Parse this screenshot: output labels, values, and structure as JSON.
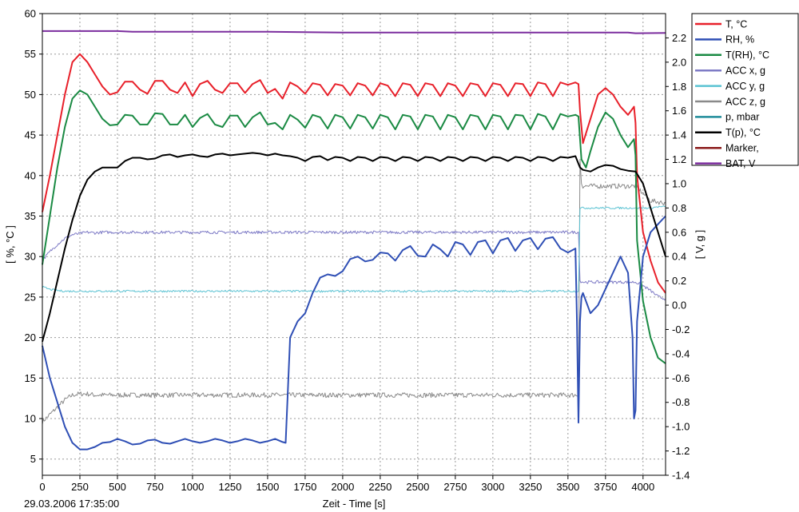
{
  "chart_data": {
    "type": "line",
    "title": "",
    "xlabel": "Zeit - Time [s]",
    "ylabel_left": "[ %, °C ]",
    "ylabel_right": "[ V, g ]",
    "start_timestamp": "29.03.2006 17:35:00",
    "xlim": [
      0,
      4150
    ],
    "ylim_left": [
      3,
      60
    ],
    "ylim_right": [
      -1.4,
      2.4
    ],
    "x_ticks": [
      0,
      250,
      500,
      750,
      1000,
      1250,
      1500,
      1750,
      2000,
      2250,
      2500,
      2750,
      3000,
      3250,
      3500,
      3750,
      4000
    ],
    "y_ticks_left": [
      5,
      10,
      15,
      20,
      25,
      30,
      35,
      40,
      45,
      50,
      55,
      60
    ],
    "y_ticks_right": [
      -1.4,
      -1.2,
      -1.0,
      -0.8,
      -0.6,
      -0.4,
      -0.2,
      0.0,
      0.2,
      0.4,
      0.6,
      0.8,
      1.0,
      1.2,
      1.4,
      1.6,
      1.8,
      2.0,
      2.2
    ],
    "y_tick_labels_right": [
      "-1.4",
      "-1.2",
      "-1.0",
      "-0.8",
      "-0.6",
      "-0.4",
      "-0.2",
      "0.0",
      "0.2",
      "0.4",
      "0.6",
      "0.8",
      "1.0",
      "1.2",
      "1.4",
      "1.6",
      "1.8",
      "2.0",
      "2.2"
    ],
    "grid": true,
    "legend_position": "right",
    "series": [
      {
        "name": "T, °C",
        "axis": "left",
        "color": "#e8202a",
        "x": [
          0,
          50,
          100,
          150,
          200,
          250,
          300,
          350,
          400,
          450,
          500,
          550,
          600,
          650,
          700,
          750,
          800,
          850,
          900,
          950,
          1000,
          1050,
          1100,
          1150,
          1200,
          1250,
          1300,
          1350,
          1400,
          1450,
          1500,
          1550,
          1600,
          1650,
          1700,
          1750,
          1800,
          1850,
          1900,
          1950,
          2000,
          2050,
          2100,
          2150,
          2200,
          2250,
          2300,
          2350,
          2400,
          2450,
          2500,
          2550,
          2600,
          2650,
          2700,
          2750,
          2800,
          2850,
          2900,
          2950,
          3000,
          3050,
          3100,
          3150,
          3200,
          3250,
          3300,
          3350,
          3400,
          3450,
          3500,
          3550,
          3570,
          3580,
          3600,
          3650,
          3700,
          3750,
          3800,
          3850,
          3900,
          3940,
          3950,
          3960,
          4000,
          4050,
          4100,
          4150
        ],
        "y": [
          35.5,
          40,
          45,
          50,
          54,
          55,
          54,
          52.5,
          51,
          50,
          50.3,
          51.6,
          51.6,
          50.6,
          50.1,
          51.7,
          51.7,
          50.6,
          50.2,
          51.5,
          49.8,
          51.3,
          51.7,
          50.6,
          50.2,
          51.4,
          51.4,
          50.2,
          51.3,
          51.8,
          50.2,
          50.7,
          49.5,
          51.5,
          51.0,
          50.1,
          51.4,
          51.2,
          49.9,
          51.3,
          51.1,
          49.9,
          51.4,
          51.1,
          49.9,
          51.4,
          51.1,
          49.8,
          51.4,
          51.2,
          49.8,
          51.4,
          51.2,
          49.8,
          51.4,
          51.1,
          49.8,
          51.4,
          51.2,
          49.8,
          51.4,
          51.2,
          49.8,
          51.4,
          51.3,
          49.8,
          51.5,
          51.3,
          49.8,
          51.5,
          51.2,
          51.5,
          51.3,
          48,
          44,
          47,
          50,
          50.8,
          50,
          48.5,
          47.5,
          48.5,
          46.5,
          40,
          33,
          29.5,
          26.8,
          25.5
        ]
      },
      {
        "name": "RH, %",
        "axis": "left",
        "color": "#2f4fb5",
        "x": [
          0,
          50,
          100,
          150,
          200,
          250,
          300,
          350,
          400,
          450,
          500,
          550,
          600,
          650,
          700,
          750,
          800,
          850,
          900,
          950,
          1000,
          1050,
          1100,
          1150,
          1200,
          1250,
          1300,
          1350,
          1400,
          1450,
          1500,
          1550,
          1600,
          1620,
          1650,
          1700,
          1750,
          1800,
          1850,
          1900,
          1950,
          2000,
          2050,
          2100,
          2150,
          2200,
          2250,
          2300,
          2350,
          2400,
          2450,
          2500,
          2550,
          2600,
          2650,
          2700,
          2750,
          2800,
          2850,
          2900,
          2950,
          3000,
          3050,
          3100,
          3150,
          3200,
          3250,
          3300,
          3350,
          3400,
          3450,
          3500,
          3550,
          3560,
          3570,
          3580,
          3590,
          3600,
          3650,
          3700,
          3750,
          3800,
          3850,
          3900,
          3930,
          3940,
          3950,
          3960,
          4000,
          4050,
          4100,
          4150
        ],
        "y": [
          19,
          15,
          12,
          9,
          7,
          6.2,
          6.2,
          6.5,
          7,
          7.1,
          7.5,
          7.2,
          6.8,
          6.9,
          7.3,
          7.4,
          7.0,
          6.9,
          7.2,
          7.5,
          7.2,
          7.0,
          7.2,
          7.5,
          7.3,
          7.0,
          7.2,
          7.5,
          7.3,
          7.0,
          7.2,
          7.5,
          7.1,
          7.0,
          20,
          22,
          23,
          25.5,
          27.4,
          27.8,
          27.6,
          28.2,
          29.7,
          30,
          29.4,
          29.6,
          30.5,
          30.4,
          29.5,
          30.8,
          31.3,
          30.1,
          30,
          31.5,
          30.9,
          30,
          31.8,
          31.5,
          30.2,
          31.8,
          32,
          30.4,
          32,
          32.3,
          30.7,
          32,
          32.3,
          30.9,
          32.2,
          32.4,
          31,
          30.5,
          31,
          22,
          9.5,
          22,
          25,
          25.5,
          23,
          24,
          26,
          28,
          30,
          28,
          20,
          10,
          11,
          22,
          30,
          33,
          34,
          35
        ]
      },
      {
        "name": "T(RH), °C",
        "axis": "left",
        "color": "#1a8a43",
        "x": [
          0,
          50,
          100,
          150,
          200,
          250,
          300,
          350,
          400,
          450,
          500,
          550,
          600,
          650,
          700,
          750,
          800,
          850,
          900,
          950,
          1000,
          1050,
          1100,
          1150,
          1200,
          1250,
          1300,
          1350,
          1400,
          1450,
          1500,
          1550,
          1600,
          1650,
          1700,
          1750,
          1800,
          1850,
          1900,
          1950,
          2000,
          2050,
          2100,
          2150,
          2200,
          2250,
          2300,
          2350,
          2400,
          2450,
          2500,
          2550,
          2600,
          2650,
          2700,
          2750,
          2800,
          2850,
          2900,
          2950,
          3000,
          3050,
          3100,
          3150,
          3200,
          3250,
          3300,
          3350,
          3400,
          3450,
          3500,
          3550,
          3570,
          3590,
          3620,
          3650,
          3700,
          3750,
          3800,
          3850,
          3900,
          3940,
          3950,
          3960,
          4000,
          4050,
          4100,
          4150
        ],
        "y": [
          29,
          35,
          41,
          46,
          49.5,
          50.5,
          50,
          48.5,
          47,
          46.2,
          46.3,
          47.5,
          47.4,
          46.3,
          46.3,
          47.7,
          47.6,
          46.3,
          46.3,
          47.5,
          46,
          47.1,
          47.6,
          46.3,
          46.0,
          47.4,
          47.4,
          46.0,
          47.2,
          47.8,
          46.3,
          46.5,
          45.7,
          47.5,
          46.9,
          45.9,
          47.5,
          47.2,
          45.8,
          47.5,
          47.2,
          45.8,
          47.5,
          47.2,
          45.8,
          47.5,
          47.2,
          45.7,
          47.5,
          47.3,
          45.7,
          47.5,
          47.3,
          45.7,
          47.5,
          47.2,
          45.7,
          47.5,
          47.3,
          45.7,
          47.5,
          47.3,
          45.7,
          47.5,
          47.4,
          45.7,
          47.6,
          47.3,
          45.7,
          47.6,
          47.3,
          47.5,
          47.3,
          42,
          41,
          43,
          46,
          47.8,
          47,
          45,
          43.5,
          44.5,
          42.5,
          32,
          24.5,
          20,
          17.5,
          16.8
        ]
      },
      {
        "name": "ACC x, g",
        "axis": "right",
        "color": "#7e7bc6",
        "noise": 0.012,
        "x": [
          0,
          50,
          100,
          150,
          200,
          250,
          300,
          350,
          400,
          450,
          500,
          600,
          700,
          800,
          900,
          1000,
          1100,
          1200,
          1300,
          1400,
          1500,
          1600,
          1700,
          1800,
          1900,
          2000,
          2100,
          2200,
          2300,
          2400,
          2500,
          2600,
          2700,
          2800,
          2900,
          3000,
          3100,
          3200,
          3300,
          3400,
          3500,
          3570,
          3580,
          3600,
          3650,
          3700,
          3750,
          3800,
          3850,
          3900,
          3950,
          4000,
          4050,
          4100,
          4150
        ],
        "y": [
          0.37,
          0.44,
          0.5,
          0.55,
          0.58,
          0.59,
          0.6,
          0.595,
          0.6,
          0.6,
          0.6,
          0.6,
          0.6,
          0.6,
          0.6,
          0.6,
          0.6,
          0.6,
          0.6,
          0.6,
          0.6,
          0.6,
          0.6,
          0.6,
          0.6,
          0.6,
          0.6,
          0.6,
          0.6,
          0.6,
          0.6,
          0.6,
          0.6,
          0.6,
          0.6,
          0.6,
          0.6,
          0.6,
          0.6,
          0.6,
          0.6,
          0.6,
          0.2,
          0.19,
          0.19,
          0.19,
          0.19,
          0.19,
          0.19,
          0.19,
          0.19,
          0.16,
          0.12,
          0.07,
          0.05
        ]
      },
      {
        "name": "ACC y, g",
        "axis": "right",
        "color": "#5cc3d3",
        "noise": 0.008,
        "x": [
          0,
          50,
          100,
          150,
          200,
          250,
          300,
          350,
          400,
          450,
          500,
          600,
          700,
          800,
          900,
          1000,
          1100,
          1200,
          1300,
          1400,
          1500,
          1600,
          1700,
          1800,
          1900,
          2000,
          2100,
          2200,
          2300,
          2400,
          2500,
          2600,
          2700,
          2800,
          2900,
          3000,
          3100,
          3200,
          3300,
          3400,
          3500,
          3570,
          3580,
          3600,
          3650,
          3700,
          3750,
          3800,
          3850,
          3900,
          3950,
          4000,
          4050,
          4100,
          4150
        ],
        "y": [
          0.15,
          0.13,
          0.12,
          0.115,
          0.115,
          0.115,
          0.115,
          0.115,
          0.115,
          0.115,
          0.115,
          0.115,
          0.115,
          0.115,
          0.115,
          0.115,
          0.115,
          0.115,
          0.115,
          0.115,
          0.115,
          0.115,
          0.115,
          0.115,
          0.115,
          0.115,
          0.115,
          0.115,
          0.115,
          0.115,
          0.115,
          0.115,
          0.115,
          0.115,
          0.115,
          0.115,
          0.115,
          0.115,
          0.115,
          0.115,
          0.115,
          0.115,
          0.8,
          0.8,
          0.8,
          0.8,
          0.8,
          0.8,
          0.8,
          0.8,
          0.8,
          0.8,
          0.8,
          0.81,
          0.81
        ]
      },
      {
        "name": "ACC z, g",
        "axis": "right",
        "color": "#8a8a8a",
        "noise": 0.02,
        "x": [
          0,
          50,
          100,
          150,
          200,
          250,
          300,
          350,
          400,
          450,
          500,
          600,
          700,
          800,
          900,
          1000,
          1100,
          1200,
          1300,
          1400,
          1500,
          1600,
          1700,
          1800,
          1900,
          2000,
          2100,
          2200,
          2300,
          2400,
          2500,
          2600,
          2700,
          2800,
          2900,
          3000,
          3100,
          3200,
          3300,
          3400,
          3500,
          3570,
          3580,
          3590,
          3600,
          3650,
          3700,
          3750,
          3800,
          3850,
          3900,
          3950,
          4000,
          4050,
          4100,
          4150
        ],
        "y": [
          -0.96,
          -0.9,
          -0.84,
          -0.78,
          -0.74,
          -0.73,
          -0.73,
          -0.74,
          -0.74,
          -0.74,
          -0.74,
          -0.74,
          -0.74,
          -0.74,
          -0.74,
          -0.74,
          -0.74,
          -0.74,
          -0.74,
          -0.74,
          -0.74,
          -0.74,
          -0.74,
          -0.74,
          -0.74,
          -0.74,
          -0.74,
          -0.74,
          -0.74,
          -0.74,
          -0.74,
          -0.74,
          -0.74,
          -0.74,
          -0.74,
          -0.74,
          -0.74,
          -0.74,
          -0.74,
          -0.74,
          -0.74,
          -0.74,
          1.2,
          1.0,
          0.98,
          0.98,
          0.98,
          0.98,
          0.98,
          0.98,
          0.98,
          0.98,
          0.92,
          0.86,
          0.85,
          0.84
        ]
      },
      {
        "name": "p, mbar",
        "axis": "left",
        "color": "#1e8c99",
        "x": [],
        "y": []
      },
      {
        "name": "T(p), °C",
        "axis": "left",
        "color": "#000000",
        "x": [
          0,
          50,
          100,
          150,
          200,
          250,
          300,
          350,
          400,
          450,
          500,
          550,
          600,
          650,
          700,
          750,
          800,
          850,
          900,
          950,
          1000,
          1050,
          1100,
          1150,
          1200,
          1250,
          1300,
          1350,
          1400,
          1450,
          1500,
          1550,
          1600,
          1650,
          1700,
          1750,
          1800,
          1850,
          1900,
          1950,
          2000,
          2050,
          2100,
          2150,
          2200,
          2250,
          2300,
          2350,
          2400,
          2450,
          2500,
          2550,
          2600,
          2650,
          2700,
          2750,
          2800,
          2850,
          2900,
          2950,
          3000,
          3050,
          3100,
          3150,
          3200,
          3250,
          3300,
          3350,
          3400,
          3450,
          3500,
          3550,
          3580,
          3600,
          3650,
          3700,
          3750,
          3800,
          3850,
          3900,
          3950,
          4000,
          4050,
          4100,
          4150
        ],
        "y": [
          19.5,
          23,
          27,
          31,
          34.5,
          37.5,
          39.5,
          40.5,
          41,
          41,
          41,
          41.8,
          42.2,
          42.2,
          42,
          42.1,
          42.5,
          42.6,
          42.3,
          42.5,
          42.6,
          42.4,
          42.3,
          42.6,
          42.7,
          42.5,
          42.6,
          42.7,
          42.8,
          42.7,
          42.5,
          42.7,
          42.5,
          42.4,
          42.2,
          41.8,
          42.3,
          42.4,
          41.9,
          42.3,
          42.2,
          41.8,
          42.3,
          42.2,
          41.8,
          42.3,
          42.2,
          41.8,
          42.3,
          42.2,
          41.8,
          42.3,
          42.2,
          41.8,
          42.3,
          42.2,
          41.8,
          42.3,
          42.2,
          41.8,
          42.3,
          42.2,
          41.8,
          42.3,
          42.2,
          41.8,
          42.3,
          42.2,
          41.8,
          42.3,
          42.2,
          42.4,
          41,
          40.7,
          40.5,
          41,
          41.3,
          41.2,
          40.8,
          40.6,
          40.5,
          39,
          36,
          33,
          30
        ]
      },
      {
        "name": "Marker,",
        "axis": "left",
        "color": "#8b1a1a",
        "x": [],
        "y": []
      },
      {
        "name": "BAT, V",
        "axis": "right",
        "color": "#7b2d9e",
        "x": [
          0,
          500,
          600,
          1000,
          1500,
          2000,
          2500,
          3000,
          3500,
          3900,
          3950,
          4150
        ],
        "y": [
          2.256,
          2.256,
          2.25,
          2.25,
          2.25,
          2.244,
          2.244,
          2.244,
          2.244,
          2.244,
          2.238,
          2.24
        ]
      }
    ]
  }
}
